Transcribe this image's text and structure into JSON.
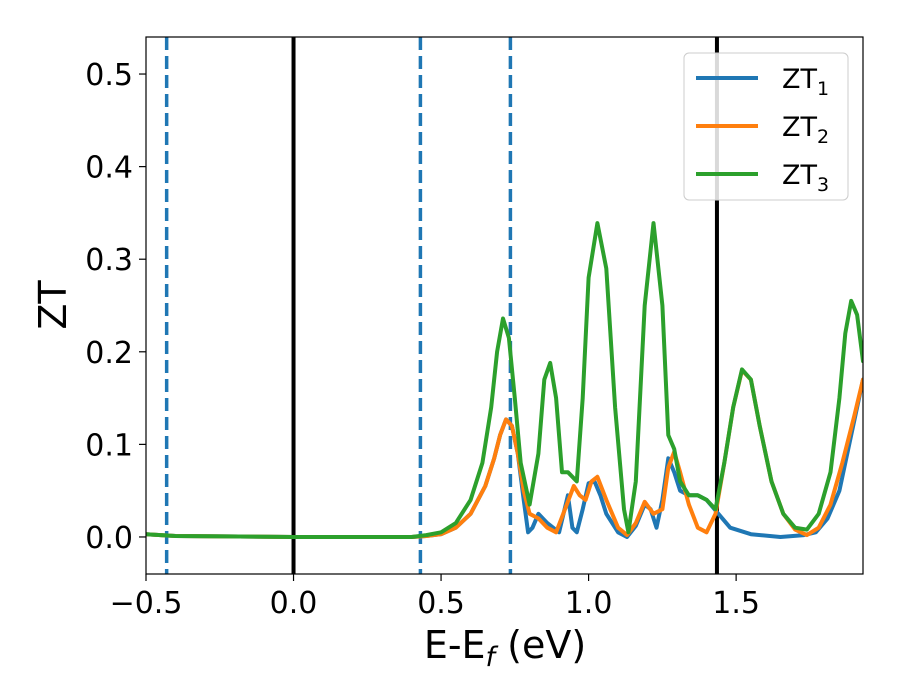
{
  "chart_data": {
    "type": "line",
    "xlabel": "E-E_f (eV)",
    "ylabel": "ZT",
    "xlim": [
      -0.5,
      1.93
    ],
    "ylim": [
      -0.04,
      0.54
    ],
    "x_ticks": [
      -0.5,
      0.0,
      0.5,
      1.0,
      1.5
    ],
    "x_tick_labels": [
      "−0.5",
      "0.0",
      "0.5",
      "1.0",
      "1.5"
    ],
    "y_ticks": [
      0.0,
      0.1,
      0.2,
      0.3,
      0.4,
      0.5
    ],
    "y_tick_labels": [
      "0.0",
      "0.1",
      "0.2",
      "0.3",
      "0.4",
      "0.5"
    ],
    "grid": false,
    "legend_position": "top-right",
    "vertical_lines": [
      {
        "x": -0.43,
        "style": "dashed",
        "color": "#1f77b4"
      },
      {
        "x": 0.0,
        "style": "solid",
        "color": "#000000"
      },
      {
        "x": 0.43,
        "style": "dashed",
        "color": "#1f77b4"
      },
      {
        "x": 0.735,
        "style": "dashed",
        "color": "#1f77b4"
      },
      {
        "x": 1.435,
        "style": "solid",
        "color": "#000000"
      }
    ],
    "series": [
      {
        "name": "ZT_1",
        "label_main": "ZT",
        "label_sub": "1",
        "color": "#1f77b4",
        "points": [
          [
            -0.5,
            0.003
          ],
          [
            -0.4,
            0.001
          ],
          [
            0.0,
            0.0
          ],
          [
            0.4,
            0.0
          ],
          [
            0.45,
            0.001
          ],
          [
            0.5,
            0.003
          ],
          [
            0.55,
            0.01
          ],
          [
            0.6,
            0.025
          ],
          [
            0.65,
            0.055
          ],
          [
            0.68,
            0.085
          ],
          [
            0.7,
            0.11
          ],
          [
            0.72,
            0.127
          ],
          [
            0.74,
            0.12
          ],
          [
            0.76,
            0.09
          ],
          [
            0.78,
            0.04
          ],
          [
            0.795,
            0.005
          ],
          [
            0.81,
            0.01
          ],
          [
            0.83,
            0.025
          ],
          [
            0.86,
            0.015
          ],
          [
            0.9,
            0.005
          ],
          [
            0.93,
            0.045
          ],
          [
            0.945,
            0.01
          ],
          [
            0.96,
            0.005
          ],
          [
            0.98,
            0.03
          ],
          [
            1.0,
            0.058
          ],
          [
            1.02,
            0.06
          ],
          [
            1.04,
            0.045
          ],
          [
            1.06,
            0.025
          ],
          [
            1.1,
            0.005
          ],
          [
            1.13,
            0.0
          ],
          [
            1.16,
            0.012
          ],
          [
            1.19,
            0.035
          ],
          [
            1.21,
            0.03
          ],
          [
            1.23,
            0.01
          ],
          [
            1.25,
            0.04
          ],
          [
            1.27,
            0.085
          ],
          [
            1.29,
            0.07
          ],
          [
            1.31,
            0.05
          ],
          [
            1.34,
            0.045
          ],
          [
            1.37,
            0.045
          ],
          [
            1.4,
            0.04
          ],
          [
            1.44,
            0.025
          ],
          [
            1.48,
            0.01
          ],
          [
            1.55,
            0.003
          ],
          [
            1.65,
            0.0
          ],
          [
            1.73,
            0.002
          ],
          [
            1.77,
            0.005
          ],
          [
            1.81,
            0.02
          ],
          [
            1.85,
            0.05
          ],
          [
            1.89,
            0.11
          ],
          [
            1.93,
            0.17
          ]
        ]
      },
      {
        "name": "ZT_2",
        "label_main": "ZT",
        "label_sub": "2",
        "color": "#ff7f0e",
        "points": [
          [
            -0.5,
            0.003
          ],
          [
            -0.4,
            0.001
          ],
          [
            0.0,
            0.0
          ],
          [
            0.4,
            0.0
          ],
          [
            0.45,
            0.001
          ],
          [
            0.5,
            0.003
          ],
          [
            0.55,
            0.01
          ],
          [
            0.6,
            0.025
          ],
          [
            0.65,
            0.055
          ],
          [
            0.68,
            0.085
          ],
          [
            0.7,
            0.11
          ],
          [
            0.72,
            0.127
          ],
          [
            0.74,
            0.12
          ],
          [
            0.76,
            0.09
          ],
          [
            0.78,
            0.05
          ],
          [
            0.8,
            0.025
          ],
          [
            0.83,
            0.02
          ],
          [
            0.86,
            0.01
          ],
          [
            0.89,
            0.005
          ],
          [
            0.92,
            0.03
          ],
          [
            0.95,
            0.055
          ],
          [
            0.97,
            0.045
          ],
          [
            0.99,
            0.04
          ],
          [
            1.01,
            0.06
          ],
          [
            1.03,
            0.065
          ],
          [
            1.06,
            0.04
          ],
          [
            1.1,
            0.01
          ],
          [
            1.13,
            0.002
          ],
          [
            1.16,
            0.015
          ],
          [
            1.19,
            0.038
          ],
          [
            1.22,
            0.025
          ],
          [
            1.25,
            0.03
          ],
          [
            1.27,
            0.075
          ],
          [
            1.29,
            0.092
          ],
          [
            1.31,
            0.07
          ],
          [
            1.34,
            0.035
          ],
          [
            1.37,
            0.01
          ],
          [
            1.4,
            0.005
          ],
          [
            1.43,
            0.025
          ],
          [
            1.46,
            0.08
          ],
          [
            1.49,
            0.14
          ],
          [
            1.52,
            0.18
          ],
          [
            1.55,
            0.17
          ],
          [
            1.58,
            0.12
          ],
          [
            1.62,
            0.06
          ],
          [
            1.66,
            0.025
          ],
          [
            1.7,
            0.008
          ],
          [
            1.74,
            0.002
          ],
          [
            1.78,
            0.01
          ],
          [
            1.82,
            0.035
          ],
          [
            1.86,
            0.08
          ],
          [
            1.9,
            0.13
          ],
          [
            1.93,
            0.17
          ]
        ]
      },
      {
        "name": "ZT_3",
        "label_main": "ZT",
        "label_sub": "3",
        "color": "#2ca02c",
        "points": [
          [
            -0.5,
            0.003
          ],
          [
            -0.4,
            0.001
          ],
          [
            0.0,
            0.0
          ],
          [
            0.4,
            0.0
          ],
          [
            0.45,
            0.002
          ],
          [
            0.5,
            0.005
          ],
          [
            0.55,
            0.015
          ],
          [
            0.6,
            0.04
          ],
          [
            0.64,
            0.08
          ],
          [
            0.67,
            0.14
          ],
          [
            0.69,
            0.2
          ],
          [
            0.71,
            0.236
          ],
          [
            0.73,
            0.215
          ],
          [
            0.75,
            0.15
          ],
          [
            0.77,
            0.08
          ],
          [
            0.8,
            0.035
          ],
          [
            0.83,
            0.09
          ],
          [
            0.85,
            0.17
          ],
          [
            0.87,
            0.188
          ],
          [
            0.89,
            0.15
          ],
          [
            0.91,
            0.07
          ],
          [
            0.93,
            0.07
          ],
          [
            0.945,
            0.065
          ],
          [
            0.96,
            0.06
          ],
          [
            0.98,
            0.15
          ],
          [
            1.0,
            0.28
          ],
          [
            1.03,
            0.339
          ],
          [
            1.06,
            0.29
          ],
          [
            1.09,
            0.14
          ],
          [
            1.12,
            0.03
          ],
          [
            1.135,
            0.005
          ],
          [
            1.16,
            0.06
          ],
          [
            1.19,
            0.25
          ],
          [
            1.22,
            0.339
          ],
          [
            1.25,
            0.25
          ],
          [
            1.27,
            0.11
          ],
          [
            1.29,
            0.095
          ],
          [
            1.31,
            0.06
          ],
          [
            1.34,
            0.045
          ],
          [
            1.37,
            0.045
          ],
          [
            1.4,
            0.04
          ],
          [
            1.43,
            0.03
          ],
          [
            1.46,
            0.08
          ],
          [
            1.49,
            0.14
          ],
          [
            1.52,
            0.181
          ],
          [
            1.55,
            0.17
          ],
          [
            1.58,
            0.12
          ],
          [
            1.62,
            0.06
          ],
          [
            1.66,
            0.025
          ],
          [
            1.7,
            0.01
          ],
          [
            1.74,
            0.008
          ],
          [
            1.78,
            0.025
          ],
          [
            1.82,
            0.07
          ],
          [
            1.85,
            0.15
          ],
          [
            1.87,
            0.22
          ],
          [
            1.89,
            0.255
          ],
          [
            1.91,
            0.24
          ],
          [
            1.93,
            0.19
          ]
        ]
      }
    ]
  }
}
